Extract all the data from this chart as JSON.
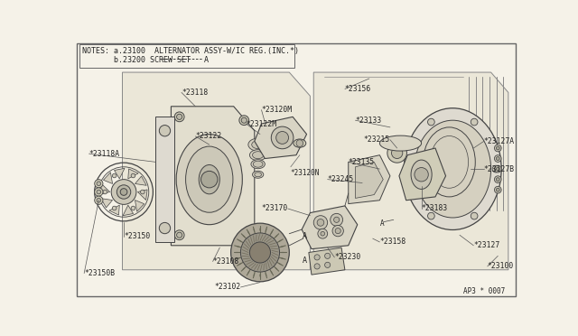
{
  "bg_color": "#f5f2e8",
  "border_color": "#666666",
  "line_color": "#444444",
  "text_color": "#222222",
  "diagram_id": "AP3 * 0007",
  "note1": "NOTES: a.23100  ALTERNATOR ASSY-W/IC REG.(INC.*)",
  "note2": "       b.23200 SCREW SET",
  "note2b": "A",
  "fig_w": 6.4,
  "fig_h": 3.72,
  "dpi": 100
}
